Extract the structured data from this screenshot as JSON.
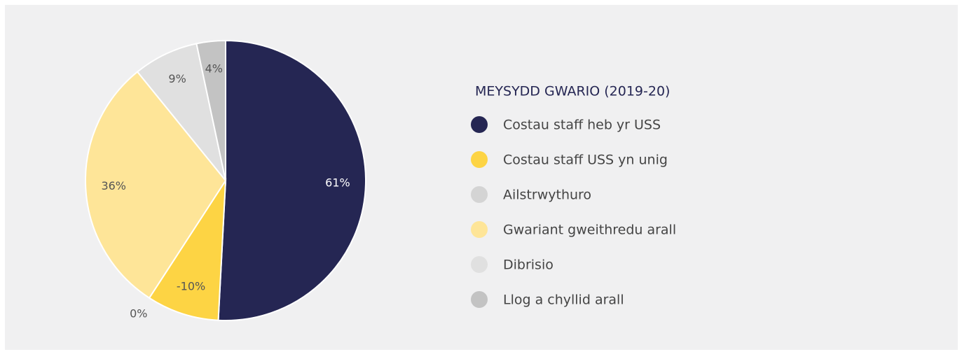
{
  "chart_data": {
    "type": "pie",
    "legend_title": "MEYSYDD GWARIO (2019-20)",
    "categories": [
      "Costau staff heb yr USS",
      "Costau staff USS yn unig",
      "Ailstrwythuro",
      "Gwariant gweithredu arall",
      "Dibrisio",
      "Llog a chyllid arall"
    ],
    "values": [
      61,
      -10,
      0,
      36,
      9,
      4
    ],
    "value_labels": [
      "61%",
      "-10%",
      "0%",
      "36%",
      "9%",
      "4%"
    ],
    "colors": [
      "#252653",
      "#fdd444",
      "#d4d4d4",
      "#fee598",
      "#e0e0e0",
      "#c3c3c3"
    ],
    "legend_position": "right"
  }
}
